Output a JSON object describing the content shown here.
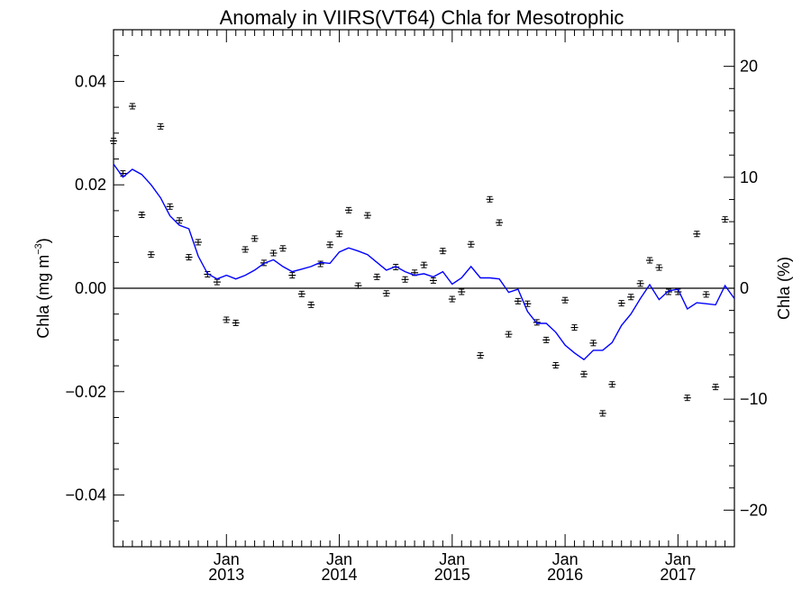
{
  "chart_data": {
    "type": "scatter",
    "title": "Anomaly in VIIRS(VT64) Chla for Mesotrophic",
    "ylabel_left": {
      "main": "Chla (mg m",
      "sup": "−3",
      "close": ")"
    },
    "ylabel_right": "Chla (%)",
    "xlim": [
      2012.0,
      2017.5
    ],
    "ylim_left": [
      -0.05,
      0.05
    ],
    "ylim_right": [
      -23.3,
      23.3
    ],
    "left_ticks": [
      {
        "v": 0.04,
        "label": "0.04"
      },
      {
        "v": 0.02,
        "label": "0.02"
      },
      {
        "v": 0.0,
        "label": "0.00"
      },
      {
        "v": -0.02,
        "label": "−0.02"
      },
      {
        "v": -0.04,
        "label": "−0.04"
      }
    ],
    "right_ticks": [
      {
        "v": 20,
        "label": "20"
      },
      {
        "v": 10,
        "label": "10"
      },
      {
        "v": 0,
        "label": "0"
      },
      {
        "v": -10,
        "label": "−10"
      },
      {
        "v": -20,
        "label": "−20"
      }
    ],
    "x_ticks": [
      {
        "v": 2013.0,
        "month": "Jan",
        "year": "2013"
      },
      {
        "v": 2014.0,
        "month": "Jan",
        "year": "2014"
      },
      {
        "v": 2015.0,
        "month": "Jan",
        "year": "2015"
      },
      {
        "v": 2016.0,
        "month": "Jan",
        "year": "2016"
      },
      {
        "v": 2017.0,
        "month": "Jan",
        "year": "2017"
      }
    ],
    "zero_line": 0.0,
    "series": [
      {
        "kind": "points-with-errorbars",
        "color": "#000000",
        "points": [
          {
            "x": 2012.0,
            "y": 0.0285
          },
          {
            "x": 2012.083,
            "y": 0.0222
          },
          {
            "x": 2012.167,
            "y": 0.0352
          },
          {
            "x": 2012.25,
            "y": 0.0142
          },
          {
            "x": 2012.333,
            "y": 0.0065
          },
          {
            "x": 2012.417,
            "y": 0.0313
          },
          {
            "x": 2012.5,
            "y": 0.0158
          },
          {
            "x": 2012.583,
            "y": 0.0131
          },
          {
            "x": 2012.667,
            "y": 0.006
          },
          {
            "x": 2012.75,
            "y": 0.0089
          },
          {
            "x": 2012.833,
            "y": 0.0027
          },
          {
            "x": 2012.917,
            "y": 0.0012
          },
          {
            "x": 2013.0,
            "y": -0.0061
          },
          {
            "x": 2013.083,
            "y": -0.0067
          },
          {
            "x": 2013.167,
            "y": 0.0075
          },
          {
            "x": 2013.25,
            "y": 0.0096
          },
          {
            "x": 2013.333,
            "y": 0.0049
          },
          {
            "x": 2013.417,
            "y": 0.0068
          },
          {
            "x": 2013.5,
            "y": 0.0077
          },
          {
            "x": 2013.583,
            "y": 0.0025
          },
          {
            "x": 2013.667,
            "y": -0.0011
          },
          {
            "x": 2013.75,
            "y": -0.0032
          },
          {
            "x": 2013.833,
            "y": 0.0047
          },
          {
            "x": 2013.917,
            "y": 0.0084
          },
          {
            "x": 2014.0,
            "y": 0.0105
          },
          {
            "x": 2014.083,
            "y": 0.0151
          },
          {
            "x": 2014.167,
            "y": 0.0005
          },
          {
            "x": 2014.25,
            "y": 0.0141
          },
          {
            "x": 2014.333,
            "y": 0.0022
          },
          {
            "x": 2014.417,
            "y": -0.001
          },
          {
            "x": 2014.5,
            "y": 0.0041
          },
          {
            "x": 2014.583,
            "y": 0.0017
          },
          {
            "x": 2014.667,
            "y": 0.003
          },
          {
            "x": 2014.75,
            "y": 0.0045
          },
          {
            "x": 2014.833,
            "y": 0.0015
          },
          {
            "x": 2014.917,
            "y": 0.0072
          },
          {
            "x": 2015.0,
            "y": -0.0021
          },
          {
            "x": 2015.083,
            "y": -0.0007
          },
          {
            "x": 2015.167,
            "y": 0.0085
          },
          {
            "x": 2015.25,
            "y": -0.013
          },
          {
            "x": 2015.333,
            "y": 0.0172
          },
          {
            "x": 2015.417,
            "y": 0.0127
          },
          {
            "x": 2015.5,
            "y": -0.0089
          },
          {
            "x": 2015.583,
            "y": -0.0025
          },
          {
            "x": 2015.667,
            "y": -0.003
          },
          {
            "x": 2015.75,
            "y": -0.0066
          },
          {
            "x": 2015.833,
            "y": -0.01
          },
          {
            "x": 2015.917,
            "y": -0.0149
          },
          {
            "x": 2016.0,
            "y": -0.0023
          },
          {
            "x": 2016.083,
            "y": -0.0076
          },
          {
            "x": 2016.167,
            "y": -0.0166
          },
          {
            "x": 2016.25,
            "y": -0.0106
          },
          {
            "x": 2016.333,
            "y": -0.0242
          },
          {
            "x": 2016.417,
            "y": -0.0186
          },
          {
            "x": 2016.5,
            "y": -0.0029
          },
          {
            "x": 2016.583,
            "y": -0.0017
          },
          {
            "x": 2016.667,
            "y": 0.0009
          },
          {
            "x": 2016.75,
            "y": 0.0054
          },
          {
            "x": 2016.833,
            "y": 0.004
          },
          {
            "x": 2016.917,
            "y": -0.0007
          },
          {
            "x": 2017.0,
            "y": -0.0007
          },
          {
            "x": 2017.083,
            "y": -0.0212
          },
          {
            "x": 2017.167,
            "y": 0.0105
          },
          {
            "x": 2017.25,
            "y": -0.0012
          },
          {
            "x": 2017.333,
            "y": -0.0191
          },
          {
            "x": 2017.417,
            "y": 0.0133
          }
        ]
      },
      {
        "kind": "line",
        "color": "#0000ff",
        "x": [
          2012.0,
          2012.083,
          2012.167,
          2012.25,
          2012.333,
          2012.417,
          2012.5,
          2012.583,
          2012.667,
          2012.75,
          2012.833,
          2012.917,
          2013.0,
          2013.083,
          2013.167,
          2013.25,
          2013.333,
          2013.417,
          2013.5,
          2013.583,
          2013.667,
          2013.75,
          2013.833,
          2013.917,
          2014.0,
          2014.083,
          2014.167,
          2014.25,
          2014.333,
          2014.417,
          2014.5,
          2014.583,
          2014.667,
          2014.75,
          2014.833,
          2014.917,
          2015.0,
          2015.083,
          2015.167,
          2015.25,
          2015.333,
          2015.417,
          2015.5,
          2015.583,
          2015.667,
          2015.75,
          2015.833,
          2015.917,
          2016.0,
          2016.083,
          2016.167,
          2016.25,
          2016.333,
          2016.417,
          2016.5,
          2016.583,
          2016.667,
          2016.75,
          2016.833,
          2016.917,
          2017.0,
          2017.083,
          2017.167,
          2017.25,
          2017.333,
          2017.417,
          2017.5
        ],
        "y": [
          0.024,
          0.0215,
          0.023,
          0.022,
          0.02,
          0.0175,
          0.014,
          0.0122,
          0.0115,
          0.0062,
          0.0028,
          0.0018,
          0.0025,
          0.0018,
          0.0025,
          0.0035,
          0.0048,
          0.0055,
          0.0042,
          0.0032,
          0.0037,
          0.0042,
          0.005,
          0.0048,
          0.007,
          0.0078,
          0.0072,
          0.0065,
          0.005,
          0.0035,
          0.0042,
          0.0032,
          0.0025,
          0.0028,
          0.0022,
          0.0032,
          0.0008,
          0.002,
          0.0042,
          0.002,
          0.002,
          0.0018,
          -0.0008,
          -0.0002,
          -0.0045,
          -0.0068,
          -0.0068,
          -0.0085,
          -0.011,
          -0.0125,
          -0.0138,
          -0.012,
          -0.012,
          -0.0105,
          -0.0072,
          -0.005,
          -0.002,
          0.0007,
          -0.0022,
          -0.0005,
          -0.0002,
          -0.004,
          -0.0028,
          -0.003,
          -0.0032,
          0.0005,
          -0.002
        ]
      }
    ]
  }
}
